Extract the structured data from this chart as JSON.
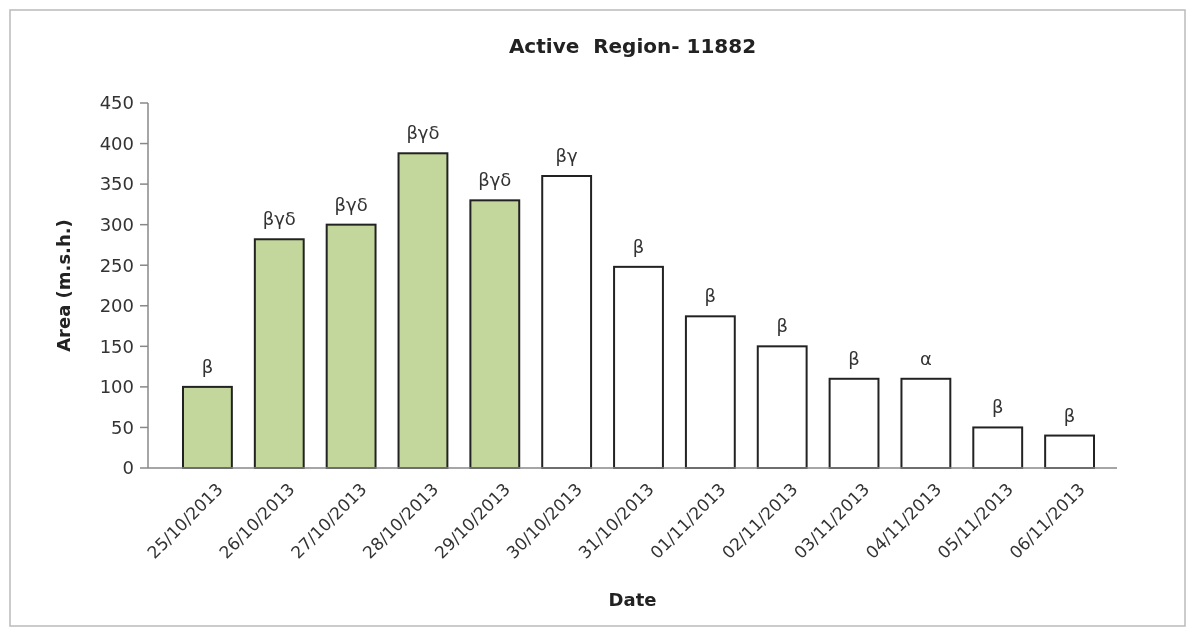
{
  "chart_data": {
    "type": "bar",
    "title": "Active  Region- 11882",
    "xlabel": "Date",
    "ylabel": "Area (m.s.h.)",
    "categories": [
      "25/10/2013",
      "26/10/2013",
      "27/10/2013",
      "28/10/2013",
      "29/10/2013",
      "30/10/2013",
      "31/10/2013",
      "01/11/2013",
      "02/11/2013",
      "03/11/2013",
      "04/11/2013",
      "05/11/2013",
      "06/11/2013"
    ],
    "values": [
      100,
      282,
      300,
      388,
      330,
      360,
      248,
      187,
      150,
      110,
      110,
      50,
      40
    ],
    "colors": [
      "#c3d69b",
      "#c3d69b",
      "#c3d69b",
      "#c3d69b",
      "#c3d69b",
      "#ffffff",
      "#ffffff",
      "#ffffff",
      "#ffffff",
      "#ffffff",
      "#ffffff",
      "#ffffff",
      "#ffffff"
    ],
    "value_labels": [
      "β",
      "βγδ",
      "βγδ",
      "βγδ",
      "βγδ",
      "βγ",
      "β",
      "β",
      "β",
      "β",
      "α",
      "β",
      "β"
    ],
    "ylim": [
      0,
      450
    ],
    "yticks": [
      0,
      50,
      100,
      150,
      200,
      250,
      300,
      350,
      400,
      450
    ],
    "grid": false
  }
}
